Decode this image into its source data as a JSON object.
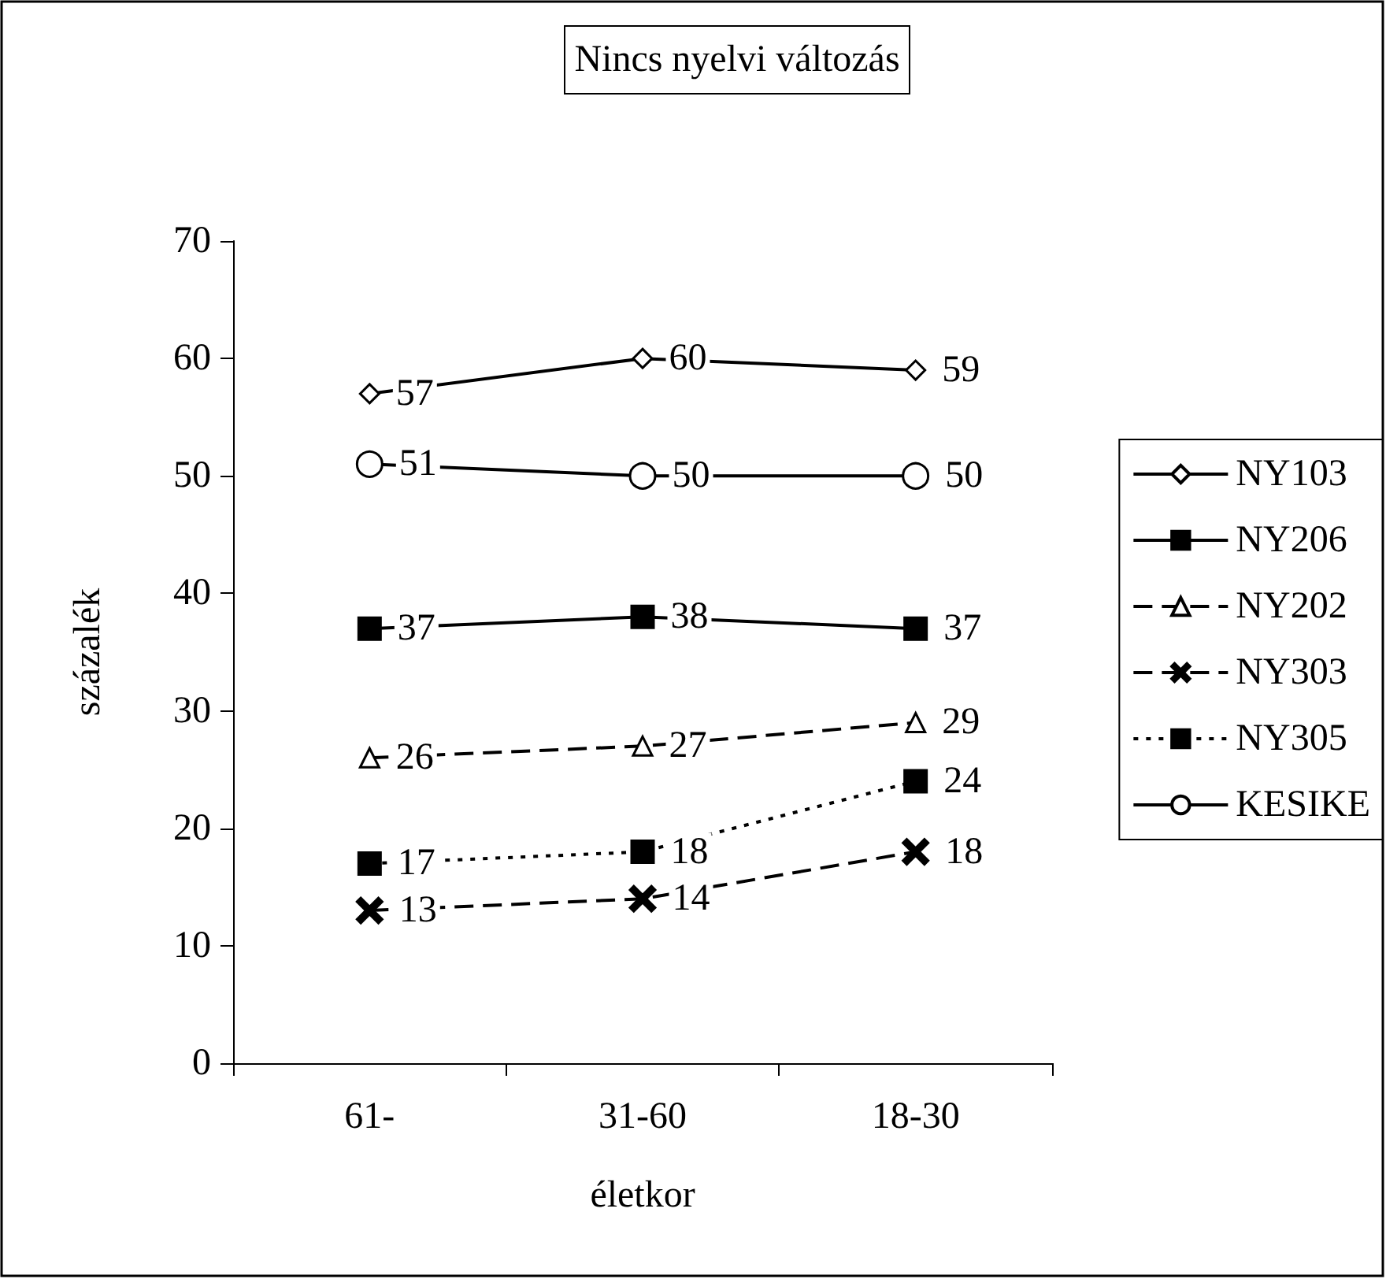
{
  "chart_data": {
    "type": "line",
    "title": "Nincs nyelvi változás",
    "xlabel": "életkor",
    "ylabel": "százalék",
    "categories": [
      "61-",
      "31-60",
      "18-30"
    ],
    "series": [
      {
        "name": "NY103",
        "color": "#000000",
        "marker": "diamond",
        "line_style": "solid",
        "values": [
          57,
          60,
          59
        ]
      },
      {
        "name": "NY206",
        "color": "#000000",
        "marker": "square",
        "line_style": "solid",
        "values": [
          37,
          38,
          37
        ]
      },
      {
        "name": "NY202",
        "color": "#000000",
        "marker": "triangle",
        "line_style": "dashed",
        "values": [
          26,
          27,
          29
        ]
      },
      {
        "name": "NY303",
        "color": "#000000",
        "marker": "cross",
        "line_style": "dashed",
        "values": [
          13,
          14,
          18
        ]
      },
      {
        "name": "NY305",
        "color": "#000000",
        "marker": "square",
        "line_style": "dotted",
        "values": [
          17,
          18,
          24
        ]
      },
      {
        "name": "KESIKE",
        "color": "#000000",
        "marker": "circle",
        "line_style": "solid",
        "values": [
          51,
          50,
          50
        ]
      }
    ],
    "ylim": [
      0,
      70
    ],
    "yticks": [
      0,
      10,
      20,
      30,
      40,
      50,
      60,
      70
    ],
    "grid": false,
    "legend": "right",
    "data_labels": true
  }
}
